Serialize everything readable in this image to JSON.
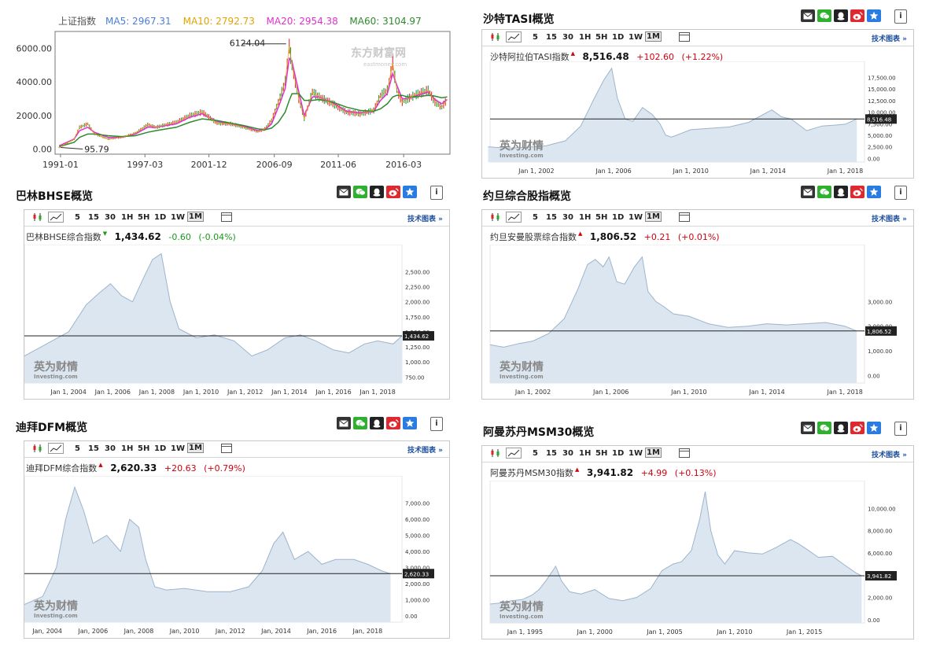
{
  "shanghai": {
    "legend": [
      {
        "label": "上证指数",
        "color": "#555555"
      },
      {
        "label": "MA5: 2967.31",
        "color": "#4a7ed8"
      },
      {
        "label": "MA10: 2792.73",
        "color": "#e0a400"
      },
      {
        "label": "MA20: 2954.38",
        "color": "#e030d0"
      },
      {
        "label": "MA60: 3104.97",
        "color": "#2e8a2e"
      }
    ],
    "watermark": "东方财富网",
    "watermark_sub": "eastmoney.com",
    "peak_label": "6124.04",
    "low_label": "95.79"
  },
  "common": {
    "toolbar_timeframes": [
      "5",
      "15",
      "30",
      "1H",
      "5H",
      "1D",
      "1W",
      "1M"
    ],
    "selected_timeframe": "1M",
    "tech_link": "技术图表 »",
    "logo_cn": "英为财情",
    "logo_en": "Investing.com"
  },
  "panels": {
    "tasi": {
      "title": "沙特TASI概览",
      "name": "沙特阿拉伯TASI指数",
      "value": "8,516.48",
      "change": "+102.60",
      "pct": "(+1.22%)",
      "dir": "up",
      "last_tag": "8,516.48"
    },
    "bhse": {
      "title": "巴林BHSE概览",
      "name": "巴林BHSE综合指数",
      "value": "1,434.62",
      "change": "-0.60",
      "pct": "(-0.04%)",
      "dir": "dn",
      "last_tag": "1,434.62"
    },
    "jordan": {
      "title": "约旦综合股指概览",
      "name": "约旦安曼股票综合指数",
      "value": "1,806.52",
      "change": "+0.21",
      "pct": "(+0.01%)",
      "dir": "up",
      "last_tag": "1,806.52"
    },
    "dfm": {
      "title": "迪拜DFM概览",
      "name": "迪拜DFM综合指数",
      "value": "2,620.33",
      "change": "+20.63",
      "pct": "(+0.79%)",
      "dir": "up",
      "last_tag": "2,620.33"
    },
    "msm": {
      "title": "阿曼苏丹MSM30概览",
      "name": "阿曼苏丹MSM30指数",
      "value": "3,941.82",
      "change": "+4.99",
      "pct": "(+0.13%)",
      "dir": "up",
      "last_tag": "3,941.82"
    }
  },
  "chart_data": [
    {
      "id": "shanghai",
      "type": "line",
      "title": "上证指数",
      "x": [
        1990.9,
        1992.0,
        1992.4,
        1993.0,
        1993.5,
        1994.5,
        1995.5,
        1996.5,
        1997.4,
        1998.0,
        1999.5,
        2000.5,
        2001.4,
        2002.5,
        2003.5,
        2004.5,
        2005.5,
        2006.0,
        2006.5,
        2007.0,
        2007.5,
        2007.8,
        2008.0,
        2008.5,
        2008.9,
        2009.5,
        2010.0,
        2011.0,
        2012.0,
        2013.0,
        2014.0,
        2014.5,
        2015.0,
        2015.4,
        2015.7,
        2016.1,
        2016.5,
        2017.0,
        2018.0,
        2018.5,
        2019.0,
        2019.4
      ],
      "values": [
        96,
        600,
        1300,
        1500,
        900,
        600,
        700,
        950,
        1450,
        1300,
        1600,
        2000,
        2200,
        1550,
        1500,
        1300,
        1050,
        1200,
        1700,
        2800,
        4000,
        6124,
        5000,
        3000,
        1800,
        3400,
        3100,
        2700,
        2200,
        2100,
        2300,
        3200,
        3500,
        5100,
        3500,
        2800,
        3000,
        3200,
        3500,
        2800,
        2500,
        2950
      ],
      "xticks": [
        "1991-01",
        "1997-03",
        "2001-12",
        "2006-09",
        "2011-06",
        "2016-03"
      ],
      "yticks": [
        0,
        2000,
        4000,
        6000
      ],
      "yticklabels": [
        "0.00",
        "2000.00",
        "4000.00",
        "6000.00"
      ],
      "ylim": [
        -300,
        7000
      ],
      "xlim": [
        1990.6,
        2019.6
      ],
      "series": [
        {
          "name": "MA20",
          "values": [
            200,
            600,
            1100,
            1300,
            1000,
            700,
            700,
            900,
            1300,
            1300,
            1500,
            1900,
            2100,
            1650,
            1500,
            1350,
            1100,
            1150,
            1500,
            2500,
            3600,
            5400,
            5200,
            3400,
            2000,
            3100,
            3100,
            2750,
            2250,
            2150,
            2250,
            2900,
            3300,
            4500,
            3800,
            3000,
            3000,
            3150,
            3400,
            2950,
            2700,
            2950
          ]
        },
        {
          "name": "MA60",
          "values": [
            150,
            400,
            700,
            900,
            900,
            800,
            750,
            800,
            1000,
            1100,
            1300,
            1600,
            1800,
            1700,
            1550,
            1400,
            1200,
            1150,
            1250,
            1600,
            2200,
            2900,
            3300,
            3300,
            2900,
            2900,
            2950,
            2800,
            2500,
            2300,
            2250,
            2400,
            2700,
            3100,
            3200,
            3200,
            3100,
            3100,
            3200,
            3150,
            3050,
            3100
          ]
        }
      ]
    },
    {
      "id": "tasi",
      "type": "area",
      "x": [
        1999.5,
        2000.5,
        2001.5,
        2002.5,
        2003.5,
        2004.3,
        2005.0,
        2005.5,
        2005.9,
        2006.2,
        2006.6,
        2007.0,
        2007.5,
        2008.0,
        2008.4,
        2008.7,
        2009.0,
        2010.0,
        2011.0,
        2012.0,
        2013.0,
        2014.2,
        2014.7,
        2015.2,
        2016.0,
        2016.8,
        2017.5,
        2018.0,
        2018.6
      ],
      "values": [
        2500,
        2200,
        2400,
        2700,
        3800,
        7000,
        13000,
        17000,
        19500,
        13000,
        8500,
        8000,
        11000,
        9500,
        7500,
        5000,
        4600,
        6200,
        6500,
        6800,
        7800,
        10500,
        9000,
        8500,
        6000,
        7000,
        7200,
        7400,
        8516
      ],
      "xticks": [
        {
          "v": 2002,
          "label": "Jan 1, 2002"
        },
        {
          "v": 2006,
          "label": "Jan 1, 2006"
        },
        {
          "v": 2010,
          "label": "Jan 1, 2010"
        },
        {
          "v": 2014,
          "label": "Jan 1, 2014"
        },
        {
          "v": 2018,
          "label": "Jan 1, 2018"
        }
      ],
      "yticks": [
        0,
        2500,
        5000,
        7500,
        10000,
        12500,
        15000,
        17500
      ],
      "yticklabels": [
        "0.00",
        "2,500.00",
        "5,000.00",
        "7,500.00",
        "10,000.00",
        "12,500.00",
        "15,000.00",
        "17,500.00"
      ],
      "ylim": [
        -800,
        21000
      ],
      "xlim": [
        1999.6,
        2019.0
      ],
      "last": 8516
    },
    {
      "id": "bhse",
      "type": "area",
      "x": [
        2002.0,
        2003.0,
        2004.0,
        2004.8,
        2005.4,
        2005.9,
        2006.4,
        2006.9,
        2007.4,
        2007.8,
        2008.2,
        2008.6,
        2009.0,
        2009.8,
        2010.6,
        2011.5,
        2012.3,
        2013.0,
        2013.8,
        2014.5,
        2015.2,
        2016.0,
        2016.7,
        2017.4,
        2018.0,
        2018.7,
        2019.1
      ],
      "values": [
        1100,
        1300,
        1500,
        1950,
        2150,
        2300,
        2100,
        2000,
        2400,
        2700,
        2800,
        2000,
        1550,
        1400,
        1450,
        1350,
        1100,
        1200,
        1400,
        1450,
        1350,
        1200,
        1150,
        1300,
        1350,
        1300,
        1434
      ],
      "xticks": [
        {
          "v": 2004,
          "label": "Jan 1, 2004"
        },
        {
          "v": 2006,
          "label": "Jan 1, 2006"
        },
        {
          "v": 2008,
          "label": "Jan 1, 2008"
        },
        {
          "v": 2010,
          "label": "Jan 1, 2010"
        },
        {
          "v": 2012,
          "label": "Jan 1, 2012"
        },
        {
          "v": 2014,
          "label": "Jan 1, 2014"
        },
        {
          "v": 2016,
          "label": "Jan 1, 2016"
        },
        {
          "v": 2018,
          "label": "Jan 1, 2018"
        }
      ],
      "yticks": [
        750,
        1000,
        1250,
        1500,
        1750,
        2000,
        2250,
        2500
      ],
      "yticklabels": [
        "750.00",
        "1,000.00",
        "1,250.00",
        "1,500.00",
        "1,750.00",
        "2,000.00",
        "2,250.00",
        "2,500.00"
      ],
      "ylim": [
        650,
        2950
      ],
      "xlim": [
        2002.0,
        2019.1
      ],
      "last": 1434.62
    },
    {
      "id": "jordan",
      "type": "area",
      "x": [
        1999.8,
        2000.5,
        2001.3,
        2002.0,
        2002.8,
        2003.6,
        2004.3,
        2004.8,
        2005.2,
        2005.6,
        2005.9,
        2006.3,
        2006.7,
        2007.2,
        2007.6,
        2007.9,
        2008.3,
        2008.7,
        2009.2,
        2010.0,
        2011.0,
        2012.0,
        2013.0,
        2014.0,
        2015.0,
        2016.0,
        2017.0,
        2018.0,
        2018.6
      ],
      "values": [
        1250,
        1150,
        1300,
        1400,
        1700,
        2300,
        3500,
        4500,
        4700,
        4400,
        4800,
        3800,
        3700,
        4400,
        4800,
        3400,
        3000,
        2800,
        2500,
        2400,
        2100,
        1950,
        2000,
        2100,
        2050,
        2100,
        2150,
        2000,
        1806
      ],
      "xticks": [
        {
          "v": 2002,
          "label": "Jan 1, 2002"
        },
        {
          "v": 2006,
          "label": "Jan 1, 2006"
        },
        {
          "v": 2010,
          "label": "Jan 1, 2010"
        },
        {
          "v": 2014,
          "label": "Jan 1, 2014"
        },
        {
          "v": 2018,
          "label": "Jan 1, 2018"
        }
      ],
      "yticks": [
        0,
        1000,
        2000,
        3000
      ],
      "yticklabels": [
        "0.00",
        "1,000.00",
        "2,000.00",
        "3,000.00"
      ],
      "ylim": [
        -300,
        5300
      ],
      "xlim": [
        1999.8,
        2019.0
      ],
      "last": 1806.52
    },
    {
      "id": "dfm",
      "type": "area",
      "x": [
        2003.0,
        2003.8,
        2004.4,
        2004.8,
        2005.2,
        2005.6,
        2006.0,
        2006.6,
        2007.2,
        2007.6,
        2008.0,
        2008.3,
        2008.7,
        2009.2,
        2010.0,
        2011.0,
        2012.0,
        2012.8,
        2013.4,
        2013.9,
        2014.3,
        2014.8,
        2015.4,
        2016.0,
        2016.6,
        2017.4,
        2018.0,
        2018.6,
        2019.0
      ],
      "values": [
        700,
        1200,
        3000,
        6000,
        8000,
        6500,
        4500,
        5000,
        4000,
        6000,
        5500,
        3500,
        1800,
        1600,
        1700,
        1500,
        1500,
        1800,
        2800,
        4500,
        5200,
        3500,
        4000,
        3200,
        3500,
        3500,
        3200,
        2800,
        2620
      ],
      "xticks": [
        {
          "v": 2004,
          "label": "Jan, 2004"
        },
        {
          "v": 2006,
          "label": "Jan, 2006"
        },
        {
          "v": 2008,
          "label": "Jan, 2008"
        },
        {
          "v": 2010,
          "label": "Jan, 2010"
        },
        {
          "v": 2012,
          "label": "Jan, 2012"
        },
        {
          "v": 2014,
          "label": "Jan, 2014"
        },
        {
          "v": 2016,
          "label": "Jan, 2016"
        },
        {
          "v": 2018,
          "label": "Jan, 2018"
        }
      ],
      "yticks": [
        0,
        1000,
        2000,
        3000,
        4000,
        5000,
        6000,
        7000
      ],
      "yticklabels": [
        "0.00",
        "1,000.00",
        "2,000.00",
        "3,000.00",
        "4,000.00",
        "5,000.00",
        "6,000.00",
        "7,000.00"
      ],
      "ylim": [
        -400,
        8700
      ],
      "xlim": [
        2003.0,
        2019.5
      ],
      "last": 2620.33
    },
    {
      "id": "msm",
      "type": "area",
      "x": [
        1992.5,
        1993.3,
        1994.0,
        1994.8,
        1995.5,
        1996.0,
        1996.5,
        1997.2,
        1997.6,
        1998.2,
        1999.0,
        2000.0,
        2001.0,
        2002.0,
        2003.0,
        2004.0,
        2004.8,
        2005.6,
        2006.2,
        2006.9,
        2007.5,
        2007.9,
        2008.3,
        2008.8,
        2009.3,
        2010.0,
        2011.0,
        2012.0,
        2013.0,
        2014.0,
        2014.6,
        2015.2,
        2016.0,
        2017.0,
        2018.0,
        2018.7,
        2019.1
      ],
      "values": [
        1400,
        1500,
        1700,
        1800,
        2200,
        2700,
        3500,
        4800,
        3500,
        2500,
        2300,
        2700,
        1900,
        1700,
        2000,
        2800,
        4400,
        5000,
        5200,
        6200,
        9000,
        11500,
        8000,
        5800,
        5000,
        6200,
        6000,
        5900,
        6500,
        7200,
        6800,
        6300,
        5600,
        5700,
        4800,
        4200,
        3941
      ],
      "xticks": [
        {
          "v": 1995,
          "label": "Jan 1, 1995"
        },
        {
          "v": 2000,
          "label": "Jan 1, 2000"
        },
        {
          "v": 2005,
          "label": "Jan 1, 2005"
        },
        {
          "v": 2010,
          "label": "Jan 1, 2010"
        },
        {
          "v": 2015,
          "label": "Jan 1, 2015"
        }
      ],
      "yticks": [
        0,
        2000,
        4000,
        6000,
        8000,
        10000
      ],
      "yticklabels": [
        "0.00",
        "2,000.00",
        "4,000.00",
        "6,000.00",
        "8,000.00",
        "10,000.00"
      ],
      "ylim": [
        -300,
        12500
      ],
      "xlim": [
        1992.5,
        2019.3
      ],
      "last": 3941.82
    }
  ]
}
